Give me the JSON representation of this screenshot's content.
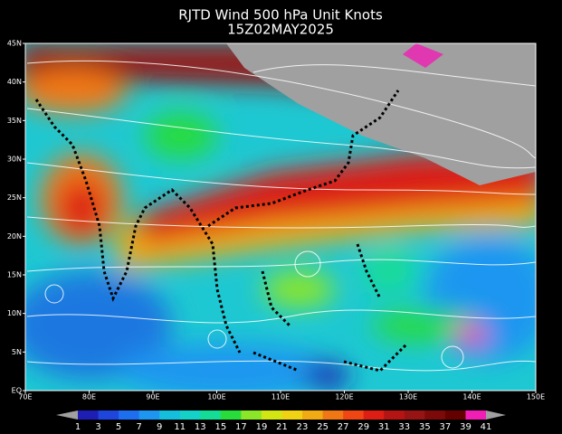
{
  "header": {
    "title": "RJTD Wind 500 hPa Unit Knots",
    "subtitle": "15Z02MAY2025"
  },
  "lat_labels": [
    "45N",
    "40N",
    "35N",
    "30N",
    "25N",
    "20N",
    "15N",
    "10N",
    "5N",
    "EQ"
  ],
  "lon_labels": [
    "70E",
    "80E",
    "90E",
    "100E",
    "110E",
    "120E",
    "130E",
    "140E",
    "150E"
  ],
  "colorbar": {
    "labels": [
      "1",
      "3",
      "5",
      "7",
      "9",
      "11",
      "13",
      "15",
      "17",
      "19",
      "21",
      "23",
      "25",
      "27",
      "29",
      "31",
      "33",
      "35",
      "37",
      "39",
      "41"
    ],
    "colors": [
      "#1e1eb4",
      "#1e46dc",
      "#1e6ef0",
      "#1e96f0",
      "#14bedc",
      "#14d2c8",
      "#14dc96",
      "#28dc3c",
      "#8ce628",
      "#d2e614",
      "#f0d214",
      "#f0aa14",
      "#f07814",
      "#f04614",
      "#dc1e14",
      "#b41414",
      "#961414",
      "#7d0a0a",
      "#640000",
      "#f01eb4",
      "#a0148c"
    ],
    "end_color": "#a0a0a0"
  }
}
